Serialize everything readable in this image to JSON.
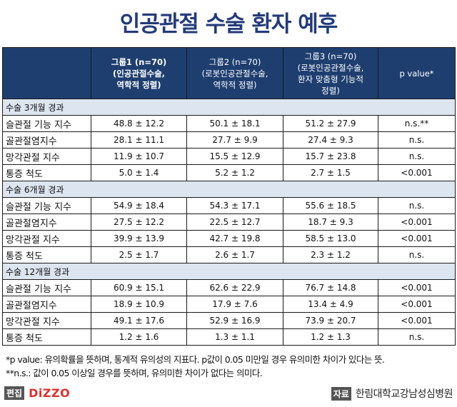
{
  "title": "인공관절 수술 환자 예후",
  "table": {
    "headers": [
      {
        "lines": [
          ""
        ]
      },
      {
        "lines": [
          "그룹1 (n=70)",
          "(인공관절수술,",
          "역학적 정렬)"
        ]
      },
      {
        "lines": [
          "그룹2 (n=70)",
          "(로봇인공관절수술,",
          "역학적 정렬)"
        ]
      },
      {
        "lines": [
          "그룹3 (n=70)",
          "(로봇인공관절수술,",
          "환자 맞춤형 기능적",
          "정렬)"
        ]
      },
      {
        "lines": [
          "p value*"
        ]
      }
    ],
    "sections": [
      {
        "label": "수술 3개월 경과",
        "rows": [
          {
            "label": "슬관절 기능 지수",
            "g1": "48.8 ± 12.2",
            "g2": "50.1 ± 18.1",
            "g3": "51.2 ± 27.9",
            "p": "n.s.**"
          },
          {
            "label": "골관절염지수",
            "g1": "28.1 ± 11.1",
            "g2": "27.7 ± 9.9",
            "g3": "27.4 ± 9.3",
            "p": "n.s."
          },
          {
            "label": "망각관절 지수",
            "g1": "11.9 ± 10.7",
            "g2": "15.5 ± 12.9",
            "g3": "15.7 ± 23.8",
            "p": "n.s."
          },
          {
            "label": "통증 척도",
            "g1": "5.0 ± 1.4",
            "g2": "5.2 ± 1.2",
            "g3": "2.7 ± 1.5",
            "p": "<0.001"
          }
        ]
      },
      {
        "label": "수술 6개월 경과",
        "rows": [
          {
            "label": "슬관절 기능 지수",
            "g1": "54.9 ± 18.4",
            "g2": "54.3 ± 17.1",
            "g3": "55.6 ± 18.5",
            "p": "n.s."
          },
          {
            "label": "골관절염지수",
            "g1": "27.5 ± 12.2",
            "g2": "22.5 ± 12.7",
            "g3": "18.7 ± 9.3",
            "p": "<0.001"
          },
          {
            "label": "망각관절 지수",
            "g1": "39.9 ± 13.9",
            "g2": "42.7 ± 19.8",
            "g3": "58.5 ± 13.0",
            "p": "<0.001"
          },
          {
            "label": "통증 척도",
            "g1": "2.5 ± 1.7",
            "g2": "2.6 ± 1.7",
            "g3": "2.3 ± 1.2",
            "p": "n.s."
          }
        ]
      },
      {
        "label": "수술 12개월 경과",
        "rows": [
          {
            "label": "슬관절 기능 지수",
            "g1": "60.9 ± 15.1",
            "g2": "62.6 ± 22.9",
            "g3": "76.7 ± 14.8",
            "p": "<0.001"
          },
          {
            "label": "골관절염지수",
            "g1": "18.9 ± 10.9",
            "g2": "17.9 ± 7.6",
            "g3": "13.4 ± 4.9",
            "p": "<0.001"
          },
          {
            "label": "망각관절 지수",
            "g1": "49.1 ± 17.6",
            "g2": "52.9 ± 16.9",
            "g3": "73.9 ± 20.7",
            "p": "<0.001"
          },
          {
            "label": "통증 척도",
            "g1": "1.2 ± 1.6",
            "g2": "1.3 ± 1.1",
            "g3": "1.2 ± 1.3",
            "p": "n.s."
          }
        ]
      }
    ]
  },
  "notes": [
    "*p value: 유의확률을 뜻하며, 통계적 유의성의 지표다. p값이 0.05 미만일 경우 유의미한 차이가 있다는 뜻.",
    "**n.s.: 값이 0.05 이상일 경우를 뜻하며, 유의미한 차이가 없다는 의미다."
  ],
  "footer": {
    "editor_tag": "편집",
    "editor_brand": "DiZZO",
    "source_tag": "자료",
    "source_name": "한림대학교강남성심병원"
  }
}
